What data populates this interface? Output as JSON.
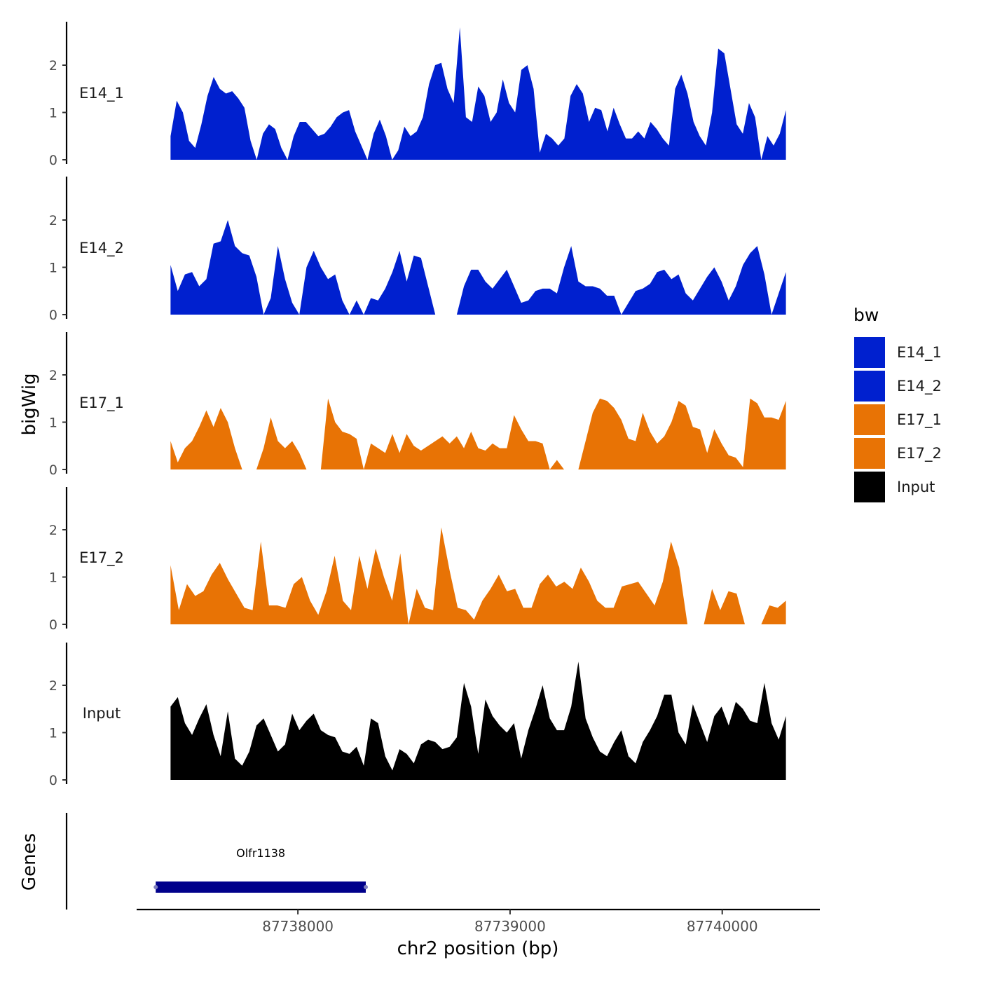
{
  "chart_data": {
    "type": "area",
    "title": "",
    "xlabel": "chr2 position (bp)",
    "ylabel": "bigWig",
    "gene_panel_label": "Genes",
    "xlim": [
      87737240,
      87740460
    ],
    "x_ticks": [
      87738000,
      87739000,
      87740000
    ],
    "x_tick_labels": [
      "87738000",
      "87739000",
      "87740000"
    ],
    "ylim": [
      0,
      2.9
    ],
    "y_ticks": [
      0,
      1,
      2
    ],
    "y_tick_labels": [
      "0",
      "1",
      "2"
    ],
    "data_x_start": 87737400,
    "data_x_end": 87740300,
    "legend": {
      "title": "bw",
      "entries": [
        {
          "label": "E14_1",
          "color": "#0020cf"
        },
        {
          "label": "E14_2",
          "color": "#0020cf"
        },
        {
          "label": "E17_1",
          "color": "#e87305"
        },
        {
          "label": "E17_2",
          "color": "#e87305"
        },
        {
          "label": "Input",
          "color": "#000000"
        }
      ]
    },
    "series": [
      {
        "name": "E14_1",
        "color": "#0020cf",
        "values": [
          0.5,
          1.25,
          1.0,
          0.4,
          0.25,
          0.75,
          1.35,
          1.75,
          1.5,
          1.4,
          1.45,
          1.3,
          1.1,
          0.4,
          0.0,
          0.55,
          0.75,
          0.65,
          0.25,
          0.0,
          0.5,
          0.8,
          0.8,
          0.65,
          0.5,
          0.55,
          0.7,
          0.9,
          1.0,
          1.05,
          0.6,
          0.3,
          0.0,
          0.55,
          0.85,
          0.5,
          0.0,
          0.2,
          0.7,
          0.5,
          0.6,
          0.9,
          1.6,
          2.0,
          2.05,
          1.5,
          1.2,
          2.8,
          0.9,
          0.8,
          1.55,
          1.35,
          0.8,
          1.0,
          1.7,
          1.2,
          1.0,
          1.9,
          2.0,
          1.5,
          0.15,
          0.55,
          0.45,
          0.3,
          0.45,
          1.35,
          1.6,
          1.4,
          0.8,
          1.1,
          1.05,
          0.6,
          1.1,
          0.75,
          0.45,
          0.45,
          0.6,
          0.45,
          0.8,
          0.65,
          0.45,
          0.3,
          1.5,
          1.8,
          1.4,
          0.8,
          0.5,
          0.3,
          1.0,
          2.35,
          2.25,
          1.5,
          0.75,
          0.55,
          1.2,
          0.9,
          0.0,
          0.5,
          0.3,
          0.55,
          1.05
        ]
      },
      {
        "name": "E14_2",
        "color": "#0020cf",
        "values": [
          1.05,
          0.5,
          0.85,
          0.9,
          0.6,
          0.75,
          1.5,
          1.55,
          2.0,
          1.45,
          1.3,
          1.25,
          0.8,
          0.0,
          0.35,
          1.45,
          0.75,
          0.25,
          0.0,
          1.0,
          1.35,
          1.0,
          0.75,
          0.85,
          0.3,
          0.0,
          0.3,
          0.0,
          0.35,
          0.3,
          0.55,
          0.9,
          1.35,
          0.7,
          1.25,
          1.2,
          0.6,
          0.0,
          null,
          null,
          0.0,
          0.6,
          0.95,
          0.95,
          0.7,
          0.55,
          0.75,
          0.95,
          0.6,
          0.25,
          0.3,
          0.5,
          0.55,
          0.55,
          0.45,
          1.0,
          1.45,
          0.7,
          0.6,
          0.6,
          0.55,
          0.4,
          0.4,
          0.0,
          0.25,
          0.5,
          0.55,
          0.65,
          0.9,
          0.95,
          0.75,
          0.85,
          0.45,
          0.3,
          0.55,
          0.8,
          1.0,
          0.7,
          0.3,
          0.6,
          1.05,
          1.3,
          1.45,
          0.85,
          0.0,
          0.45,
          0.9
        ]
      },
      {
        "name": "E17_1",
        "color": "#e87305",
        "values": [
          0.6,
          0.15,
          0.45,
          0.6,
          0.9,
          1.25,
          0.9,
          1.3,
          1.0,
          0.45,
          0.0,
          null,
          0.0,
          0.45,
          1.1,
          0.6,
          0.45,
          0.6,
          0.35,
          0.0,
          null,
          0.0,
          1.5,
          1.0,
          0.8,
          0.75,
          0.65,
          0.0,
          0.55,
          0.45,
          0.35,
          0.75,
          0.35,
          0.75,
          0.5,
          0.4,
          0.5,
          0.6,
          0.7,
          0.55,
          0.7,
          0.45,
          0.8,
          0.45,
          0.4,
          0.55,
          0.45,
          0.45,
          1.15,
          0.85,
          0.6,
          0.6,
          0.55,
          0.0,
          0.2,
          0.0,
          null,
          0.0,
          0.6,
          1.2,
          1.5,
          1.45,
          1.3,
          1.05,
          0.65,
          0.6,
          1.2,
          0.8,
          0.55,
          0.7,
          1.0,
          1.45,
          1.35,
          0.9,
          0.85,
          0.35,
          0.85,
          0.55,
          0.3,
          0.25,
          0.05,
          1.5,
          1.4,
          1.1,
          1.1,
          1.05,
          1.45
        ]
      },
      {
        "name": "E17_2",
        "color": "#e87305",
        "values": [
          1.25,
          0.3,
          0.85,
          0.6,
          0.7,
          1.05,
          1.3,
          0.95,
          0.65,
          0.35,
          0.3,
          1.75,
          0.4,
          0.4,
          0.35,
          0.85,
          1.0,
          0.5,
          0.2,
          0.7,
          1.45,
          0.5,
          0.3,
          1.45,
          0.75,
          1.6,
          1.0,
          0.5,
          1.5,
          0.0,
          0.75,
          0.35,
          0.3,
          2.05,
          1.15,
          0.35,
          0.3,
          0.1,
          0.5,
          0.75,
          1.05,
          0.7,
          0.75,
          0.35,
          0.35,
          0.85,
          1.05,
          0.8,
          0.9,
          0.75,
          1.2,
          0.9,
          0.5,
          0.35,
          0.35,
          0.8,
          0.85,
          0.9,
          0.65,
          0.4,
          0.9,
          1.75,
          1.2,
          0.0,
          null,
          0.0,
          0.75,
          0.3,
          0.7,
          0.65,
          0.0,
          null,
          0.0,
          0.4,
          0.35,
          0.5
        ]
      },
      {
        "name": "Input",
        "color": "#000000",
        "values": [
          1.55,
          1.75,
          1.2,
          0.95,
          1.3,
          1.6,
          0.95,
          0.5,
          1.45,
          0.45,
          0.3,
          0.6,
          1.15,
          1.3,
          0.95,
          0.6,
          0.75,
          1.4,
          1.05,
          1.25,
          1.4,
          1.05,
          0.95,
          0.9,
          0.6,
          0.55,
          0.7,
          0.3,
          1.3,
          1.2,
          0.5,
          0.2,
          0.65,
          0.55,
          0.35,
          0.75,
          0.85,
          0.8,
          0.65,
          0.7,
          0.9,
          2.05,
          1.55,
          0.55,
          1.7,
          1.35,
          1.15,
          1.0,
          1.2,
          0.45,
          1.05,
          1.5,
          2.0,
          1.3,
          1.05,
          1.05,
          1.55,
          2.5,
          1.3,
          0.9,
          0.6,
          0.5,
          0.8,
          1.05,
          0.5,
          0.35,
          0.8,
          1.05,
          1.35,
          1.8,
          1.8,
          1.0,
          0.75,
          1.6,
          1.2,
          0.8,
          1.35,
          1.55,
          1.15,
          1.65,
          1.5,
          1.25,
          1.2,
          2.05,
          1.2,
          0.85,
          1.35
        ]
      }
    ],
    "genes": [
      {
        "name": "Olfr1138",
        "start": 87737330,
        "end": 87738320,
        "color": "#00008b"
      }
    ]
  }
}
